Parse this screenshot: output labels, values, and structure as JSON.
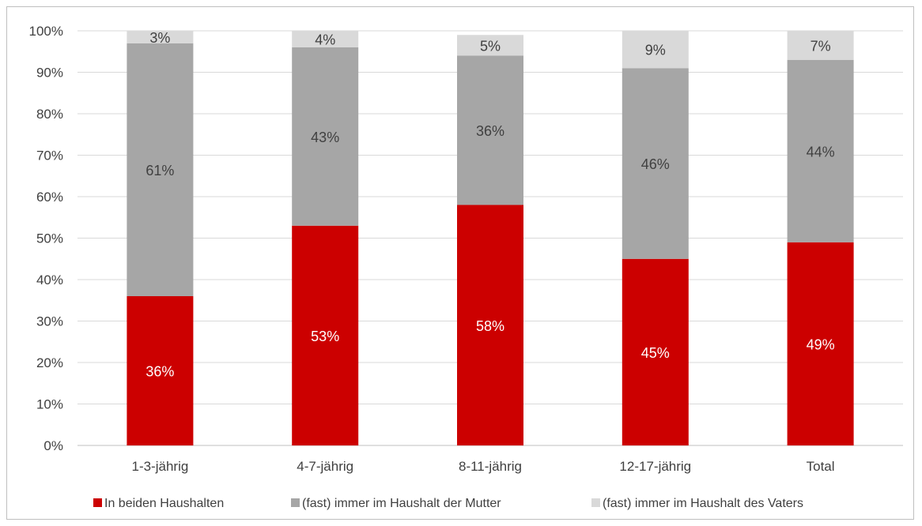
{
  "chart_data": {
    "type": "bar",
    "stacked": true,
    "percent_stacked": true,
    "title": "",
    "xlabel": "",
    "ylabel": "",
    "ylim": [
      0,
      100
    ],
    "y_ticks": [
      "0%",
      "10%",
      "20%",
      "30%",
      "40%",
      "50%",
      "60%",
      "70%",
      "80%",
      "90%",
      "100%"
    ],
    "grid": true,
    "legend_position": "bottom",
    "categories": [
      "1-3-jährig",
      "4-7-jährig",
      "8-11-jährig",
      "12-17-jährig",
      "Total"
    ],
    "series": [
      {
        "name": "In beiden Haushalten",
        "color": "#cc0000",
        "label_color": "#ffffff",
        "values": [
          36,
          53,
          58,
          45,
          49
        ],
        "labels": [
          "36%",
          "53%",
          "58%",
          "45%",
          "49%"
        ]
      },
      {
        "name": "(fast) immer im Haushalt der Mutter",
        "color": "#a6a6a6",
        "label_color": "#404040",
        "values": [
          61,
          43,
          36,
          46,
          44
        ],
        "labels": [
          "61%",
          "43%",
          "36%",
          "46%",
          "44%"
        ]
      },
      {
        "name": "(fast) immer im Haushalt des Vaters",
        "color": "#d9d9d9",
        "label_color": "#404040",
        "values": [
          3,
          4,
          5,
          9,
          7
        ],
        "labels": [
          "3%",
          "4%",
          "5%",
          "9%",
          "7%"
        ]
      }
    ]
  }
}
